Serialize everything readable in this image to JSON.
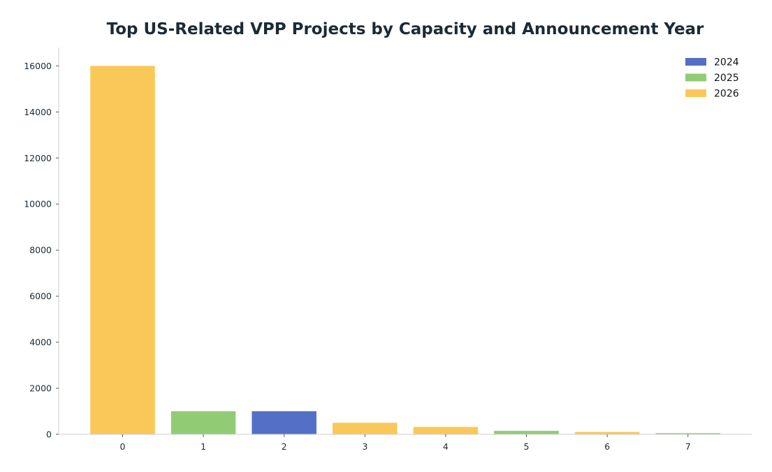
{
  "chart_data": {
    "type": "bar",
    "title": "Top US-Related VPP Projects by Capacity and Announcement Year",
    "xlabel": "",
    "ylabel": "",
    "categories": [
      "0",
      "1",
      "2",
      "3",
      "4",
      "5",
      "6",
      "7"
    ],
    "values": [
      16000,
      1000,
      1000,
      500,
      320,
      150,
      100,
      50
    ],
    "bar_years": [
      "2026",
      "2025",
      "2024",
      "2026",
      "2026",
      "2025",
      "2026",
      "2025"
    ],
    "yticks": [
      0,
      2000,
      4000,
      6000,
      8000,
      10000,
      12000,
      14000,
      16000
    ],
    "ylim": [
      0,
      16800
    ],
    "grid": false,
    "legend": {
      "placement": "top-right",
      "entries": [
        {
          "label": "2024",
          "color": "#5470c6"
        },
        {
          "label": "2025",
          "color": "#91cc75"
        },
        {
          "label": "2026",
          "color": "#fac858"
        }
      ]
    }
  }
}
